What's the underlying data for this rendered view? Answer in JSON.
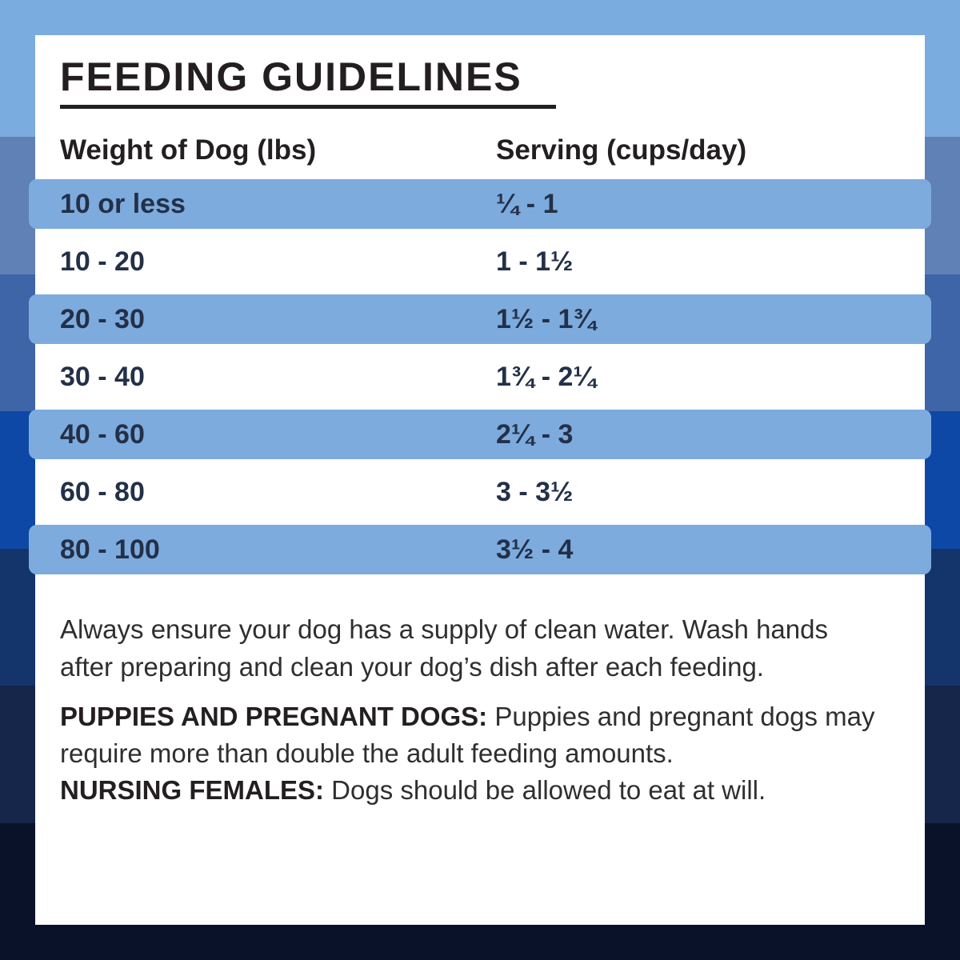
{
  "card": {
    "title": "FEEDING GUIDELINES",
    "table": {
      "col1_header": "Weight of Dog (lbs)",
      "col2_header": "Serving (cups/day)",
      "rows": [
        {
          "weight": "10 or less",
          "serving": "¼ - 1",
          "highlighted": true
        },
        {
          "weight": "10 - 20",
          "serving": "1 - 1½",
          "highlighted": false
        },
        {
          "weight": "20 - 30",
          "serving": "1½ - 1¾",
          "highlighted": true
        },
        {
          "weight": "30 - 40",
          "serving": "1¾ - 2¼",
          "highlighted": false
        },
        {
          "weight": "40 - 60",
          "serving": "2¼ - 3",
          "highlighted": true
        },
        {
          "weight": "60 - 80",
          "serving": "3 - 3½",
          "highlighted": false
        },
        {
          "weight": "80 - 100",
          "serving": "3½ - 4",
          "highlighted": true
        }
      ]
    },
    "water_note_lines": [
      "Always ensure your dog has a supply of clean water. Wash hands",
      "after preparing and clean your dog’s dish after each feeding."
    ],
    "special_notes": [
      {
        "bold": "PUPPIES AND PREGNANT DOGS:",
        "text": " Puppies and pregnant dogs may"
      },
      {
        "bold": "",
        "text": "require more than double the adult feeding amounts."
      },
      {
        "bold": "NURSING FEMALES:",
        "text": " Dogs should be allowed to eat at will."
      }
    ]
  },
  "colors": {
    "background_bands": [
      "#7BACDF",
      "#5F81B6",
      "#3E65A7",
      "#0E48A6",
      "#14356B",
      "#16254A",
      "#0A1229"
    ],
    "card_background": "#FFFFFF",
    "row_highlight": "#7DABDE",
    "heading_text": "#231F20",
    "row_text": "#233048",
    "body_text": "#2F2F2F"
  }
}
